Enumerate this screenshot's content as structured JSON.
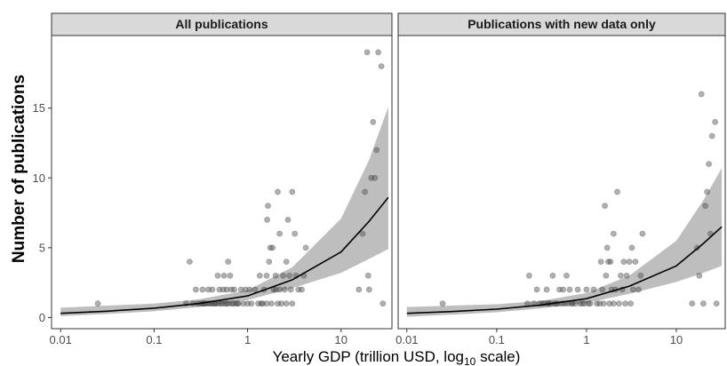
{
  "chart_data": {
    "type": "scatter",
    "xlabel": "Yearly GDP (trillion USD, log",
    "xlabel_sub": "10",
    "xlabel_suffix": " scale)",
    "ylabel": "Number of publications",
    "x_scale": "log10",
    "xlim": [
      0.008,
      35
    ],
    "ylim": [
      -0.8,
      20.2
    ],
    "x_ticks": [
      0.01,
      0.1,
      1,
      10
    ],
    "x_tick_labels": [
      "0.01",
      "0.1",
      "1",
      "10"
    ],
    "y_ticks": [
      0,
      5,
      10,
      15
    ],
    "y_tick_labels": [
      "0",
      "5",
      "10",
      "15"
    ],
    "grid": false,
    "style": {
      "point_color": "#4d4d4d",
      "point_opacity": 0.45,
      "ribbon_color": "#bebebe",
      "line_color": "#000000",
      "strip_fill": "#d9d9d9",
      "frame_color": "#333333"
    },
    "panels": [
      {
        "title": "All publications",
        "fit": [
          {
            "x": 0.01,
            "y": 0.3,
            "lo": 0.1,
            "hi": 0.7
          },
          {
            "x": 0.03,
            "y": 0.45,
            "lo": 0.25,
            "hi": 0.85
          },
          {
            "x": 0.1,
            "y": 0.67,
            "lo": 0.45,
            "hi": 1.0
          },
          {
            "x": 0.3,
            "y": 1.0,
            "lo": 0.75,
            "hi": 1.3
          },
          {
            "x": 1,
            "y": 1.55,
            "lo": 1.25,
            "hi": 1.95
          },
          {
            "x": 3,
            "y": 2.7,
            "lo": 2.1,
            "hi": 3.6
          },
          {
            "x": 10,
            "y": 4.7,
            "lo": 3.2,
            "hi": 7.1
          },
          {
            "x": 20,
            "y": 6.9,
            "lo": 4.2,
            "hi": 11.3
          },
          {
            "x": 32,
            "y": 8.6,
            "lo": 4.9,
            "hi": 15.1
          }
        ],
        "points": [
          {
            "x": 0.025,
            "y": 1
          },
          {
            "x": 0.24,
            "y": 4
          },
          {
            "x": 0.22,
            "y": 1
          },
          {
            "x": 0.26,
            "y": 1
          },
          {
            "x": 0.28,
            "y": 2
          },
          {
            "x": 0.29,
            "y": 1
          },
          {
            "x": 0.31,
            "y": 1
          },
          {
            "x": 0.33,
            "y": 1
          },
          {
            "x": 0.33,
            "y": 2
          },
          {
            "x": 0.34,
            "y": 1
          },
          {
            "x": 0.35,
            "y": 1
          },
          {
            "x": 0.37,
            "y": 1
          },
          {
            "x": 0.38,
            "y": 2
          },
          {
            "x": 0.39,
            "y": 1
          },
          {
            "x": 0.41,
            "y": 1
          },
          {
            "x": 0.42,
            "y": 2
          },
          {
            "x": 0.43,
            "y": 1
          },
          {
            "x": 0.45,
            "y": 1
          },
          {
            "x": 0.46,
            "y": 1
          },
          {
            "x": 0.48,
            "y": 3
          },
          {
            "x": 0.49,
            "y": 1
          },
          {
            "x": 0.5,
            "y": 2
          },
          {
            "x": 0.52,
            "y": 1
          },
          {
            "x": 0.54,
            "y": 1
          },
          {
            "x": 0.55,
            "y": 2
          },
          {
            "x": 0.56,
            "y": 3
          },
          {
            "x": 0.58,
            "y": 1
          },
          {
            "x": 0.6,
            "y": 2
          },
          {
            "x": 0.6,
            "y": 1
          },
          {
            "x": 0.62,
            "y": 4
          },
          {
            "x": 0.63,
            "y": 1
          },
          {
            "x": 0.65,
            "y": 3
          },
          {
            "x": 0.67,
            "y": 2
          },
          {
            "x": 0.68,
            "y": 1
          },
          {
            "x": 0.7,
            "y": 1
          },
          {
            "x": 0.72,
            "y": 2
          },
          {
            "x": 0.75,
            "y": 1
          },
          {
            "x": 0.78,
            "y": 1
          },
          {
            "x": 0.8,
            "y": 1
          },
          {
            "x": 0.85,
            "y": 2
          },
          {
            "x": 0.9,
            "y": 1
          },
          {
            "x": 0.95,
            "y": 2
          },
          {
            "x": 1.0,
            "y": 1
          },
          {
            "x": 1.05,
            "y": 2
          },
          {
            "x": 1.1,
            "y": 1
          },
          {
            "x": 1.2,
            "y": 2
          },
          {
            "x": 1.3,
            "y": 1
          },
          {
            "x": 1.35,
            "y": 3
          },
          {
            "x": 1.4,
            "y": 1
          },
          {
            "x": 1.45,
            "y": 1
          },
          {
            "x": 1.5,
            "y": 2
          },
          {
            "x": 1.6,
            "y": 1
          },
          {
            "x": 1.6,
            "y": 3
          },
          {
            "x": 1.62,
            "y": 7
          },
          {
            "x": 1.65,
            "y": 8
          },
          {
            "x": 1.7,
            "y": 4
          },
          {
            "x": 1.75,
            "y": 5
          },
          {
            "x": 1.8,
            "y": 1
          },
          {
            "x": 1.85,
            "y": 5
          },
          {
            "x": 1.9,
            "y": 2
          },
          {
            "x": 2.0,
            "y": 2
          },
          {
            "x": 2.0,
            "y": 3
          },
          {
            "x": 2.1,
            "y": 1
          },
          {
            "x": 2.1,
            "y": 9
          },
          {
            "x": 2.2,
            "y": 6
          },
          {
            "x": 2.2,
            "y": 2
          },
          {
            "x": 2.3,
            "y": 1
          },
          {
            "x": 2.4,
            "y": 3
          },
          {
            "x": 2.5,
            "y": 2
          },
          {
            "x": 2.6,
            "y": 1
          },
          {
            "x": 2.6,
            "y": 4
          },
          {
            "x": 2.7,
            "y": 7
          },
          {
            "x": 2.8,
            "y": 3
          },
          {
            "x": 2.9,
            "y": 2
          },
          {
            "x": 3.0,
            "y": 9
          },
          {
            "x": 3.0,
            "y": 1
          },
          {
            "x": 3.2,
            "y": 6
          },
          {
            "x": 3.3,
            "y": 3
          },
          {
            "x": 3.5,
            "y": 2
          },
          {
            "x": 3.8,
            "y": 2
          },
          {
            "x": 4.2,
            "y": 5
          },
          {
            "x": 4.0,
            "y": 3
          },
          {
            "x": 15.5,
            "y": 2
          },
          {
            "x": 17,
            "y": 6
          },
          {
            "x": 18,
            "y": 9
          },
          {
            "x": 19,
            "y": 19
          },
          {
            "x": 19.5,
            "y": 3
          },
          {
            "x": 20,
            "y": 2
          },
          {
            "x": 21,
            "y": 10
          },
          {
            "x": 22,
            "y": 14
          },
          {
            "x": 23,
            "y": 10
          },
          {
            "x": 24,
            "y": 12
          },
          {
            "x": 25,
            "y": 19
          },
          {
            "x": 27,
            "y": 18
          },
          {
            "x": 28,
            "y": 1
          }
        ]
      },
      {
        "title": "Publications with new data only",
        "fit": [
          {
            "x": 0.01,
            "y": 0.3,
            "lo": 0.05,
            "hi": 0.75
          },
          {
            "x": 0.03,
            "y": 0.42,
            "lo": 0.2,
            "hi": 0.85
          },
          {
            "x": 0.1,
            "y": 0.6,
            "lo": 0.38,
            "hi": 0.95
          },
          {
            "x": 0.3,
            "y": 0.88,
            "lo": 0.65,
            "hi": 1.18
          },
          {
            "x": 1,
            "y": 1.35,
            "lo": 1.05,
            "hi": 1.75
          },
          {
            "x": 3,
            "y": 2.25,
            "lo": 1.7,
            "hi": 3.0
          },
          {
            "x": 10,
            "y": 3.7,
            "lo": 2.55,
            "hi": 5.5
          },
          {
            "x": 20,
            "y": 5.3,
            "lo": 3.2,
            "hi": 8.4
          },
          {
            "x": 32,
            "y": 6.5,
            "lo": 3.7,
            "hi": 10.7
          }
        ],
        "points": [
          {
            "x": 0.025,
            "y": 1
          },
          {
            "x": 0.23,
            "y": 3
          },
          {
            "x": 0.22,
            "y": 1
          },
          {
            "x": 0.26,
            "y": 1
          },
          {
            "x": 0.28,
            "y": 2
          },
          {
            "x": 0.3,
            "y": 1
          },
          {
            "x": 0.32,
            "y": 1
          },
          {
            "x": 0.34,
            "y": 1
          },
          {
            "x": 0.36,
            "y": 2
          },
          {
            "x": 0.37,
            "y": 1
          },
          {
            "x": 0.38,
            "y": 1
          },
          {
            "x": 0.4,
            "y": 1
          },
          {
            "x": 0.42,
            "y": 3
          },
          {
            "x": 0.44,
            "y": 1
          },
          {
            "x": 0.46,
            "y": 1
          },
          {
            "x": 0.48,
            "y": 1
          },
          {
            "x": 0.5,
            "y": 2
          },
          {
            "x": 0.53,
            "y": 1
          },
          {
            "x": 0.55,
            "y": 2
          },
          {
            "x": 0.57,
            "y": 1
          },
          {
            "x": 0.6,
            "y": 3
          },
          {
            "x": 0.62,
            "y": 1
          },
          {
            "x": 0.65,
            "y": 2
          },
          {
            "x": 0.68,
            "y": 1
          },
          {
            "x": 0.7,
            "y": 1
          },
          {
            "x": 0.75,
            "y": 1
          },
          {
            "x": 0.8,
            "y": 2
          },
          {
            "x": 0.85,
            "y": 1
          },
          {
            "x": 0.9,
            "y": 1
          },
          {
            "x": 0.95,
            "y": 1
          },
          {
            "x": 1.0,
            "y": 2
          },
          {
            "x": 1.05,
            "y": 1
          },
          {
            "x": 1.1,
            "y": 1
          },
          {
            "x": 1.2,
            "y": 2
          },
          {
            "x": 1.3,
            "y": 1
          },
          {
            "x": 1.4,
            "y": 1
          },
          {
            "x": 1.45,
            "y": 4
          },
          {
            "x": 1.5,
            "y": 2
          },
          {
            "x": 1.55,
            "y": 1
          },
          {
            "x": 1.6,
            "y": 8
          },
          {
            "x": 1.65,
            "y": 3
          },
          {
            "x": 1.7,
            "y": 5
          },
          {
            "x": 1.75,
            "y": 4
          },
          {
            "x": 1.8,
            "y": 1
          },
          {
            "x": 1.85,
            "y": 4
          },
          {
            "x": 1.9,
            "y": 2
          },
          {
            "x": 2.0,
            "y": 1
          },
          {
            "x": 2.0,
            "y": 6
          },
          {
            "x": 2.1,
            "y": 2
          },
          {
            "x": 2.2,
            "y": 9
          },
          {
            "x": 2.3,
            "y": 1
          },
          {
            "x": 2.4,
            "y": 3
          },
          {
            "x": 2.5,
            "y": 2
          },
          {
            "x": 2.6,
            "y": 4
          },
          {
            "x": 2.7,
            "y": 1
          },
          {
            "x": 2.8,
            "y": 3
          },
          {
            "x": 3.0,
            "y": 4
          },
          {
            "x": 3.1,
            "y": 1
          },
          {
            "x": 3.2,
            "y": 5
          },
          {
            "x": 3.3,
            "y": 2
          },
          {
            "x": 3.5,
            "y": 4
          },
          {
            "x": 3.8,
            "y": 2
          },
          {
            "x": 4.2,
            "y": 6
          },
          {
            "x": 4.0,
            "y": 3
          },
          {
            "x": 15,
            "y": 1
          },
          {
            "x": 17,
            "y": 5
          },
          {
            "x": 18,
            "y": 3
          },
          {
            "x": 19,
            "y": 16
          },
          {
            "x": 20,
            "y": 1
          },
          {
            "x": 21,
            "y": 8
          },
          {
            "x": 22,
            "y": 9
          },
          {
            "x": 23,
            "y": 11
          },
          {
            "x": 24,
            "y": 6
          },
          {
            "x": 25,
            "y": 13
          },
          {
            "x": 27,
            "y": 14
          },
          {
            "x": 28,
            "y": 1
          }
        ]
      }
    ]
  }
}
